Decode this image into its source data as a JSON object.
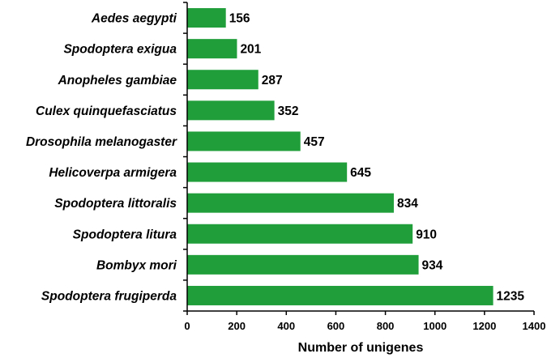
{
  "chart_data": {
    "type": "bar",
    "orientation": "horizontal",
    "categories": [
      "Aedes aegypti",
      "Spodoptera exigua",
      "Anopheles gambiae",
      "Culex quinquefasciatus",
      "Drosophila melanogaster",
      "Helicoverpa armigera",
      "Spodoptera littoralis",
      "Spodoptera litura",
      "Bombyx mori",
      "Spodoptera frugiperda"
    ],
    "values": [
      156,
      201,
      287,
      352,
      457,
      645,
      834,
      910,
      934,
      1235
    ],
    "xlabel": "Number of unigenes",
    "ylabel": "",
    "xlim": [
      0,
      1400
    ],
    "xticks": [
      0,
      200,
      400,
      600,
      800,
      1000,
      1200,
      1400
    ],
    "grid": false,
    "legend": "none",
    "bar_color": "#1f9e3a"
  }
}
